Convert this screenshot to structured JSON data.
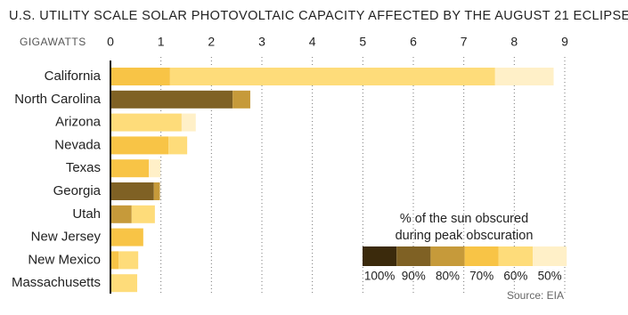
{
  "chart_data": {
    "type": "stacked-bar-horizontal",
    "title": "U.S. UTILITY SCALE SOLAR PHOTOVOLTAIC CAPACITY AFFECTED BY THE AUGUST 21 ECLIPSE",
    "x_label": "GIGAWATTS",
    "categories": [
      "California",
      "North Carolina",
      "Arizona",
      "Nevada",
      "Texas",
      "Georgia",
      "Utah",
      "New Jersey",
      "New Mexico",
      "Massachusetts"
    ],
    "series": [
      {
        "name": "100%",
        "color": "#3b2a0c",
        "values": [
          null,
          null,
          null,
          null,
          null,
          null,
          null,
          null,
          null,
          null
        ]
      },
      {
        "name": "90%",
        "color": "#7f6124",
        "values": [
          null,
          2.42,
          null,
          null,
          null,
          0.86,
          null,
          null,
          null,
          null
        ]
      },
      {
        "name": "80%",
        "color": "#c69a3a",
        "values": [
          null,
          0.35,
          null,
          null,
          null,
          0.12,
          0.42,
          null,
          null,
          null
        ]
      },
      {
        "name": "70%",
        "color": "#f8c446",
        "values": [
          1.18,
          null,
          null,
          1.15,
          0.76,
          null,
          null,
          0.65,
          0.16,
          null
        ]
      },
      {
        "name": "60%",
        "color": "#fedc7a",
        "values": [
          6.44,
          null,
          1.41,
          0.37,
          null,
          null,
          0.46,
          null,
          0.39,
          0.53
        ]
      },
      {
        "name": "50%",
        "color": "#fff0c8",
        "values": [
          1.16,
          null,
          0.28,
          null,
          0.23,
          null,
          null,
          null,
          null,
          null
        ]
      }
    ],
    "xlim": [
      0,
      9
    ],
    "xticks": [
      0,
      1,
      2,
      3,
      4,
      5,
      6,
      7,
      8,
      9
    ],
    "grid": true,
    "legend_title": [
      "% of the sun obscured",
      "during peak obscuration"
    ],
    "source": "Source: EIA"
  }
}
